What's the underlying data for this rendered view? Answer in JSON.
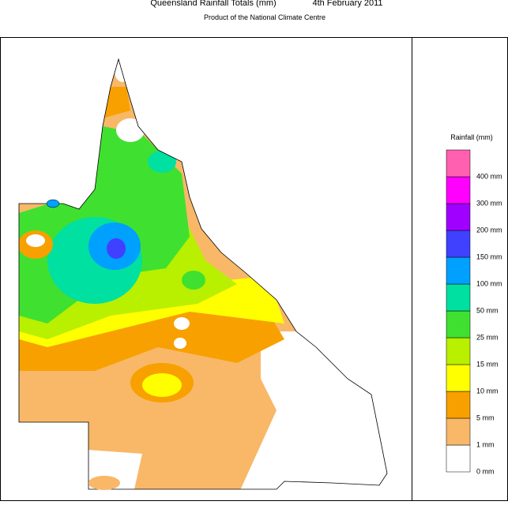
{
  "header": {
    "title": "Queensland Rainfall Totals (mm)",
    "date": "4th February 2011",
    "subtitle": "Product of the National Climate Centre"
  },
  "legend": {
    "title": "Rainfall (mm)",
    "levels": [
      {
        "label": "0 mm",
        "color": "#ffffff"
      },
      {
        "label": "1 mm",
        "color": "#f8b868"
      },
      {
        "label": "5 mm",
        "color": "#f8a000"
      },
      {
        "label": "10 mm",
        "color": "#ffff00"
      },
      {
        "label": "15 mm",
        "color": "#b8f000"
      },
      {
        "label": "25 mm",
        "color": "#40e030"
      },
      {
        "label": "50 mm",
        "color": "#00e0a0"
      },
      {
        "label": "100 mm",
        "color": "#00a0ff"
      },
      {
        "label": "150 mm",
        "color": "#4040ff"
      },
      {
        "label": "200 mm",
        "color": "#a000ff"
      },
      {
        "label": "300 mm",
        "color": "#ff00ff"
      },
      {
        "label": "400 mm",
        "color": "#ff60b0"
      }
    ]
  }
}
